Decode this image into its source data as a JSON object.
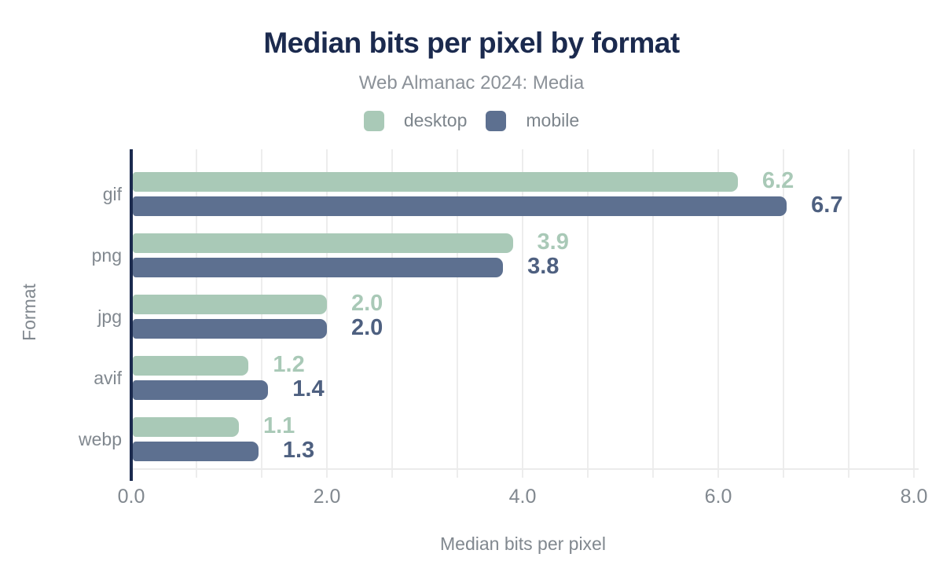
{
  "header": {
    "title": "Median bits per pixel by format",
    "subtitle": "Web Almanac 2024: Media"
  },
  "legend": {
    "items": [
      {
        "label": "desktop",
        "color": "#a9c9b7"
      },
      {
        "label": "mobile",
        "color": "#5d7090"
      }
    ]
  },
  "chart_data": {
    "type": "bar",
    "orientation": "horizontal",
    "title": "Median bits per pixel by format",
    "subtitle": "Web Almanac 2024: Media",
    "categories": [
      "gif",
      "png",
      "jpg",
      "avif",
      "webp"
    ],
    "series": [
      {
        "name": "desktop",
        "color": "#a9c9b7",
        "value_label_color": "#a9c9b7",
        "values": [
          6.2,
          3.9,
          2.0,
          1.2,
          1.1
        ]
      },
      {
        "name": "mobile",
        "color": "#5d7090",
        "value_label_color": "#4e6080",
        "values": [
          6.7,
          3.8,
          2.0,
          1.4,
          1.3
        ]
      }
    ],
    "xlabel": "Median bits per pixel",
    "ylabel": "Format",
    "xlim": [
      0,
      8
    ],
    "xticks": [
      {
        "value": 0,
        "label": "0.0"
      },
      {
        "value": 2,
        "label": "2.0"
      },
      {
        "value": 4,
        "label": "4.0"
      },
      {
        "value": 6,
        "label": "6.0"
      },
      {
        "value": 8,
        "label": "8.0"
      }
    ],
    "grid": true,
    "minor_gridline_step": 0.6667,
    "legend_position": "top",
    "value_labels": true,
    "value_label_format": "0.1f"
  },
  "colors": {
    "background": "#ffffff",
    "title": "#1b2a4e",
    "axis_line": "#1b2a4e",
    "muted_text": "#81888f",
    "gridline": "#ededed"
  }
}
